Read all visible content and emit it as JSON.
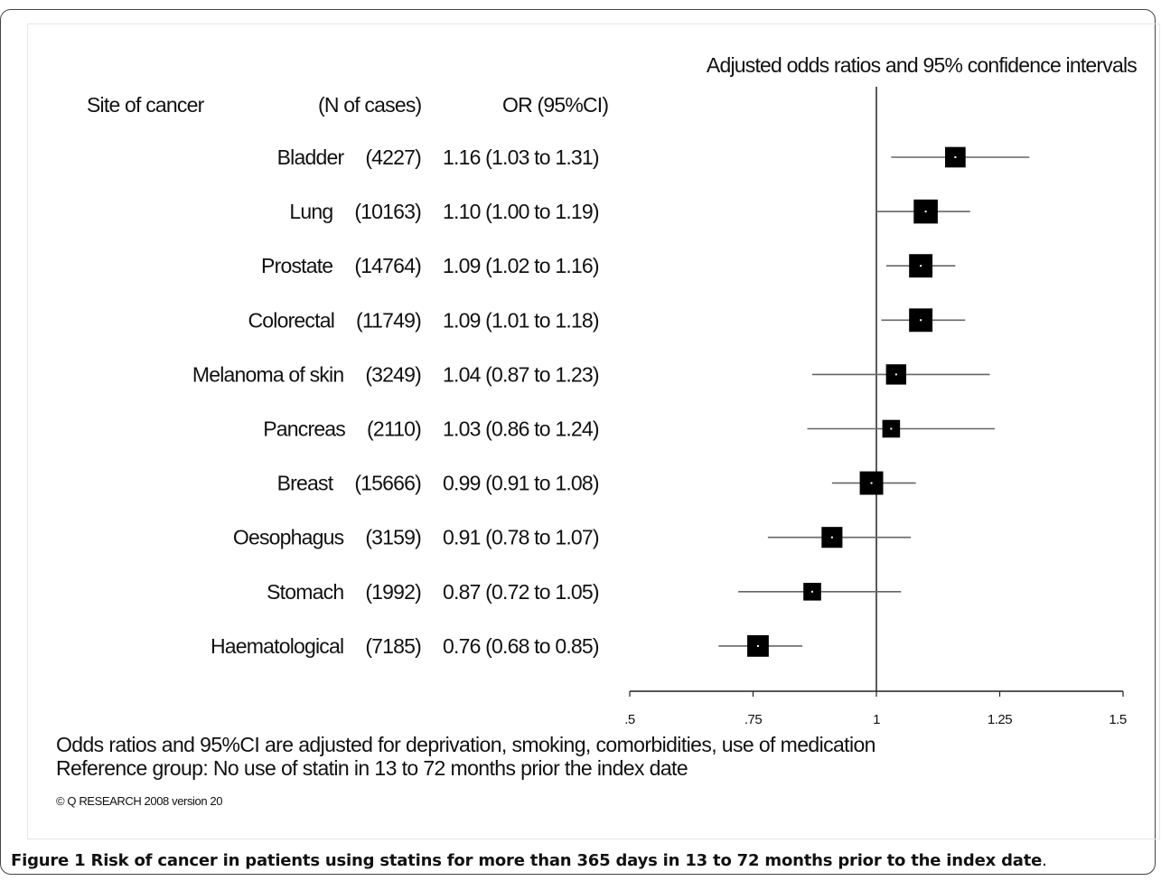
{
  "chart_data": {
    "type": "forest",
    "title": "Adjusted odds ratios and 95% confidence intervals",
    "headers": {
      "site": "Site of cancer",
      "cases": "(N of cases)",
      "or": "OR (95%CI)"
    },
    "rows": [
      {
        "site": "Bladder",
        "cases": "(4227)",
        "or_text": "1.16 (1.03 to 1.31)",
        "or": 1.16,
        "lo": 1.03,
        "hi": 1.31,
        "weight": 0.62
      },
      {
        "site": "Lung",
        "cases": "(10163)",
        "or_text": "1.10 (1.00 to 1.19)",
        "or": 1.1,
        "lo": 1.0,
        "hi": 1.19,
        "weight": 0.9
      },
      {
        "site": "Prostate",
        "cases": "(14764)",
        "or_text": "1.09 (1.02 to 1.16)",
        "or": 1.09,
        "lo": 1.02,
        "hi": 1.16,
        "weight": 0.85
      },
      {
        "site": "Colorectal",
        "cases": "(11749)",
        "or_text": "1.09 (1.01 to 1.18)",
        "or": 1.09,
        "lo": 1.01,
        "hi": 1.18,
        "weight": 0.85
      },
      {
        "site": "Melanoma of skin",
        "cases": "(3249)",
        "or_text": "1.04 (0.87 to 1.23)",
        "or": 1.04,
        "lo": 0.87,
        "hi": 1.23,
        "weight": 0.6
      },
      {
        "site": "Pancreas",
        "cases": "(2110)",
        "or_text": "1.03 (0.86 to 1.24)",
        "or": 1.03,
        "lo": 0.86,
        "hi": 1.24,
        "weight": 0.4
      },
      {
        "site": "Breast",
        "cases": "(15666)",
        "or_text": "0.99 (0.91 to 1.08)",
        "or": 0.99,
        "lo": 0.91,
        "hi": 1.08,
        "weight": 0.85
      },
      {
        "site": "Oesophagus",
        "cases": "(3159)",
        "or_text": "0.91 (0.78 to 1.07)",
        "or": 0.91,
        "lo": 0.78,
        "hi": 1.07,
        "weight": 0.65
      },
      {
        "site": "Stomach",
        "cases": "(1992)",
        "or_text": "0.87 (0.72 to 1.05)",
        "or": 0.87,
        "lo": 0.72,
        "hi": 1.05,
        "weight": 0.4
      },
      {
        "site": "Haematological",
        "cases": "(7185)",
        "or_text": "0.76 (0.68 to 0.85)",
        "or": 0.76,
        "lo": 0.68,
        "hi": 0.85,
        "weight": 0.7
      }
    ],
    "xlim": [
      0.5,
      1.5
    ],
    "reference_line": 1,
    "x_ticks": [
      {
        "value": 0.5,
        "label": ".5"
      },
      {
        "value": 0.75,
        "label": ".75"
      },
      {
        "value": 1.0,
        "label": "1"
      },
      {
        "value": 1.25,
        "label": "1.25"
      },
      {
        "value": 1.5,
        "label": "1.5"
      }
    ],
    "notes": [
      "Odds ratios and 95%CI are adjusted for deprivation, smoking, comorbidities, use of medication",
      "Reference group: No use of statin in 13 to 72 months prior the index date"
    ],
    "copyright": "© Q RESEARCH 2008 version 20"
  },
  "caption": {
    "label": "Figure 1",
    "text": "Risk of cancer in patients using statins for more than 365 days in 13 to 72 months prior to the index date",
    "end": "."
  },
  "colors": {
    "marker": "#000000",
    "line": "#666666",
    "axis": "#222222"
  }
}
